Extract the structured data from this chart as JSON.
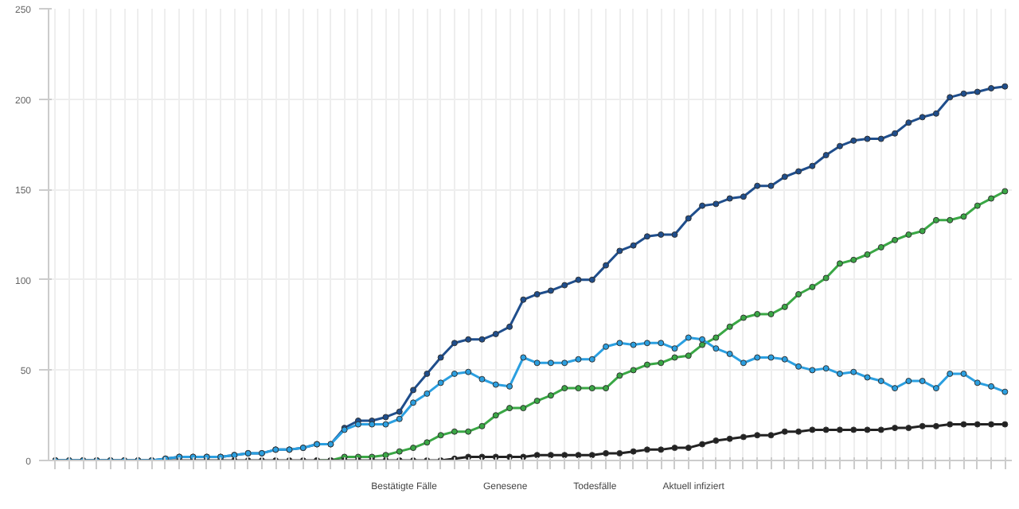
{
  "chart_data": {
    "type": "line",
    "categories": [
      null,
      null,
      null,
      null,
      null,
      null,
      null,
      null,
      null,
      null,
      null,
      null,
      null,
      null,
      null,
      null,
      null,
      null,
      null,
      null,
      null,
      null,
      null,
      null,
      null,
      null,
      null,
      null,
      null,
      null,
      null,
      null,
      null,
      null,
      null,
      null,
      null,
      null,
      null,
      null,
      null,
      null,
      null,
      null,
      null,
      null,
      null,
      null,
      null,
      null,
      null,
      null,
      null,
      null,
      null,
      null,
      null,
      null,
      null,
      null,
      null,
      null,
      null,
      null,
      null,
      null,
      null,
      null,
      null,
      null
    ],
    "series": [
      {
        "name": "Bestätigte Fälle",
        "color": "#1f4e8c",
        "values": [
          0,
          0,
          0,
          0,
          0,
          0,
          0,
          0,
          1,
          2,
          2,
          2,
          2,
          3,
          4,
          4,
          6,
          6,
          7,
          9,
          9,
          18,
          22,
          22,
          24,
          27,
          39,
          48,
          57,
          65,
          67,
          67,
          70,
          74,
          89,
          92,
          94,
          97,
          100,
          100,
          108,
          116,
          119,
          124,
          125,
          125,
          134,
          141,
          142,
          145,
          146,
          152,
          152,
          157,
          160,
          163,
          169,
          174,
          177,
          178,
          178,
          181,
          187,
          190,
          192,
          201,
          203,
          204,
          206,
          207
        ]
      },
      {
        "name": "Genesene",
        "color": "#3aa745",
        "values": [
          null,
          null,
          null,
          null,
          null,
          null,
          null,
          null,
          null,
          null,
          null,
          null,
          null,
          null,
          null,
          null,
          null,
          null,
          null,
          0,
          0,
          2,
          2,
          2,
          3,
          5,
          7,
          10,
          14,
          16,
          16,
          19,
          25,
          29,
          29,
          33,
          36,
          40,
          40,
          40,
          40,
          47,
          50,
          53,
          54,
          57,
          58,
          64,
          68,
          74,
          79,
          81,
          81,
          85,
          92,
          96,
          101,
          109,
          111,
          114,
          118,
          122,
          125,
          127,
          133,
          133,
          135,
          141,
          145,
          149
        ]
      },
      {
        "name": "Todesfälle",
        "color": "#222222",
        "values": [
          0,
          0,
          0,
          0,
          0,
          0,
          0,
          0,
          0,
          0,
          0,
          0,
          0,
          0,
          0,
          0,
          0,
          0,
          0,
          0,
          0,
          0,
          0,
          0,
          0,
          0,
          0,
          0,
          0,
          1,
          2,
          2,
          2,
          2,
          2,
          3,
          3,
          3,
          3,
          3,
          4,
          4,
          5,
          6,
          6,
          7,
          7,
          9,
          11,
          12,
          13,
          14,
          14,
          16,
          16,
          17,
          17,
          17,
          17,
          17,
          17,
          18,
          18,
          19,
          19,
          20,
          20,
          20,
          20,
          20
        ]
      },
      {
        "name": "Aktuell infiziert",
        "color": "#2b9fe0",
        "values": [
          0,
          0,
          0,
          0,
          0,
          0,
          0,
          0,
          1,
          2,
          2,
          2,
          2,
          3,
          4,
          4,
          6,
          6,
          7,
          9,
          9,
          17,
          20,
          20,
          20,
          23,
          32,
          37,
          43,
          48,
          49,
          45,
          42,
          41,
          57,
          54,
          54,
          54,
          56,
          56,
          63,
          65,
          64,
          65,
          65,
          62,
          68,
          67,
          62,
          59,
          54,
          57,
          57,
          56,
          52,
          50,
          51,
          48,
          49,
          46,
          44,
          40,
          44,
          44,
          40,
          48,
          48,
          43,
          41,
          38
        ]
      }
    ],
    "ylim": [
      0,
      250
    ],
    "yticks": [
      0,
      50,
      100,
      150,
      200,
      250
    ],
    "grid": true,
    "legend": "bottom",
    "marker": "circle",
    "line_style": "solid"
  }
}
